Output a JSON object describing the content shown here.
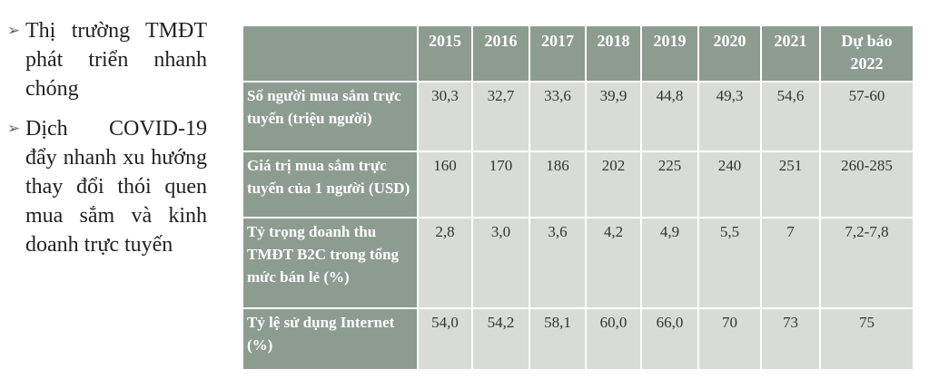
{
  "bullets": [
    "Thị trường TMĐT phát triển nhanh chóng",
    "Dịch COVID-19 đẩy nhanh xu hướng thay đổi thói quen mua sắm và kinh doanh trực tuyến"
  ],
  "table": {
    "header": [
      "2015",
      "2016",
      "2017",
      "2018",
      "2019",
      "2020",
      "2021",
      "Dự báo 2022"
    ],
    "rows": [
      [
        "Số người mua sắm trực tuyến (triệu người)",
        "30,3",
        "32,7",
        "33,6",
        "39,9",
        "44,8",
        "49,3",
        "54,6",
        "57-60"
      ],
      [
        "Giá trị mua sắm trực tuyến của 1 người (USD)",
        "160",
        "170",
        "186",
        "202",
        "225",
        "240",
        "251",
        "260-285"
      ],
      [
        "Tỷ trọng doanh thu TMĐT B2C trong tổng mức bán lẻ (%)",
        "2,8",
        "3,0",
        "3,6",
        "4,2",
        "4,9",
        "5,5",
        "7",
        "7,2-7,8"
      ],
      [
        "Tỷ lệ sử dụng Internet (%)",
        "54,0",
        "54,2",
        "58,1",
        "60,0",
        "66,0",
        "70",
        "73",
        "75"
      ]
    ]
  }
}
